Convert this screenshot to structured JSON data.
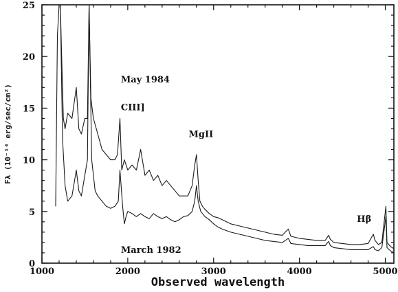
{
  "chart_data": {
    "type": "line",
    "title": "",
    "xlabel": "Observed wavelength",
    "ylabel": "Fλ (10⁻¹⁴ erg/sec/cm²)",
    "xlim": [
      1000,
      5100
    ],
    "ylim": [
      0,
      25
    ],
    "x_ticks": [
      1000,
      2000,
      3000,
      4000,
      5000
    ],
    "y_ticks": [
      0,
      5,
      10,
      15,
      20,
      25
    ],
    "x_tick_labels": [
      "1000",
      "2000",
      "3000",
      "4000",
      "5000"
    ],
    "y_tick_labels": [
      "0",
      "5",
      "10",
      "15",
      "20",
      "25"
    ],
    "grid": false,
    "series": [
      {
        "name": "May 1984",
        "x": [
          1160,
          1180,
          1200,
          1215,
          1230,
          1250,
          1270,
          1300,
          1350,
          1400,
          1430,
          1460,
          1500,
          1530,
          1549,
          1570,
          1600,
          1650,
          1700,
          1750,
          1800,
          1850,
          1880,
          1909,
          1930,
          1960,
          2000,
          2050,
          2100,
          2150,
          2200,
          2250,
          2300,
          2350,
          2400,
          2450,
          2500,
          2550,
          2600,
          2650,
          2700,
          2750,
          2780,
          2800,
          2820,
          2840,
          2870,
          2900,
          2950,
          3000,
          3050,
          3100,
          3200,
          3300,
          3400,
          3500,
          3600,
          3700,
          3800,
          3870,
          3900,
          4000,
          4100,
          4200,
          4300,
          4340,
          4360,
          4400,
          4500,
          4600,
          4700,
          4800,
          4861,
          4880,
          4920,
          4960,
          5007,
          5020,
          5060,
          5100
        ],
        "y": [
          5.5,
          22,
          25,
          25,
          20,
          14,
          13,
          14.5,
          14,
          17,
          13,
          12.5,
          14,
          14,
          25,
          16,
          14,
          12.5,
          11,
          10.5,
          10,
          10,
          10.5,
          14,
          9,
          10,
          9,
          9.5,
          9,
          11,
          8.5,
          9,
          8,
          8.5,
          7.5,
          8,
          7.5,
          7,
          6.5,
          6.5,
          6.5,
          7.5,
          9.5,
          10.5,
          8,
          6,
          5.5,
          5.2,
          4.8,
          4.5,
          4.4,
          4.2,
          3.8,
          3.6,
          3.4,
          3.2,
          3.0,
          2.8,
          2.7,
          3.3,
          2.6,
          2.4,
          2.3,
          2.2,
          2.2,
          2.7,
          2.3,
          2.0,
          1.9,
          1.8,
          1.8,
          1.9,
          2.8,
          2.2,
          1.8,
          2.0,
          5.5,
          2.0,
          1.6,
          1.4
        ]
      },
      {
        "name": "March 1982",
        "x": [
          1200,
          1215,
          1240,
          1270,
          1300,
          1350,
          1380,
          1400,
          1430,
          1460,
          1500,
          1530,
          1549,
          1580,
          1620,
          1650,
          1700,
          1750,
          1800,
          1850,
          1890,
          1909,
          1940,
          1960,
          1980,
          2000,
          2050,
          2100,
          2150,
          2200,
          2250,
          2300,
          2350,
          2400,
          2450,
          2500,
          2550,
          2600,
          2650,
          2700,
          2750,
          2780,
          2800,
          2820,
          2850,
          2900,
          2950,
          3000,
          3050,
          3100,
          3200,
          3300,
          3400,
          3500,
          3600,
          3700,
          3800,
          3870,
          3900,
          4000,
          4100,
          4200,
          4300,
          4340,
          4360,
          4400,
          4500,
          4600,
          4700,
          4800,
          4861,
          4880,
          4920,
          4960,
          5007,
          5020,
          5060,
          5100
        ],
        "y": [
          25,
          25,
          12,
          7.5,
          6,
          6.5,
          8,
          9,
          7,
          6.5,
          8.5,
          10,
          25,
          10,
          7,
          6.5,
          6,
          5.5,
          5.3,
          5.5,
          6,
          9,
          5.5,
          3.8,
          4.5,
          5,
          4.8,
          4.5,
          4.8,
          4.5,
          4.3,
          4.8,
          4.5,
          4.3,
          4.5,
          4.2,
          4.0,
          4.2,
          4.5,
          4.6,
          5,
          6,
          7.5,
          6,
          5,
          4.5,
          4.2,
          3.8,
          3.5,
          3.3,
          3.0,
          2.8,
          2.6,
          2.4,
          2.2,
          2.1,
          2.0,
          2.4,
          1.9,
          1.8,
          1.7,
          1.7,
          1.7,
          2.1,
          1.7,
          1.5,
          1.4,
          1.3,
          1.3,
          1.3,
          1.6,
          1.3,
          1.2,
          1.5,
          4.5,
          1.5,
          1.2,
          1.0
        ]
      }
    ],
    "annotations": [
      {
        "text": "May 1984",
        "x": 1920,
        "y": 17.5
      },
      {
        "text": "CIII]",
        "x": 1920,
        "y": 14.8
      },
      {
        "text": "MgII",
        "x": 2710,
        "y": 12.2
      },
      {
        "text": "March 1982",
        "x": 1920,
        "y": 1.0
      },
      {
        "text": "Hβ",
        "x": 4670,
        "y": 4.0
      }
    ]
  }
}
